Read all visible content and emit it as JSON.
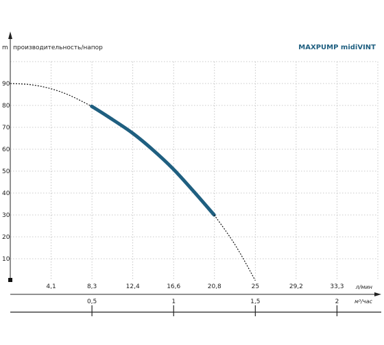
{
  "chart_data": {
    "type": "line",
    "brand_title": "MAXPUMP midiVINT",
    "ylabel": "производительность/напор",
    "y_unit": "m",
    "x_unit_lmin": "л/мин",
    "x_unit_m3h": "м³/час",
    "ylim": [
      0,
      100
    ],
    "xlim": [
      0,
      37.5
    ],
    "grid": true,
    "y_ticks": [
      10,
      20,
      30,
      40,
      50,
      60,
      70,
      80,
      90
    ],
    "x_ticks_lmin": [
      "4,1",
      "8,3",
      "12,4",
      "16,6",
      "20,8",
      "25",
      "29,2",
      "33,3"
    ],
    "x_ticks_m3h": [
      "0,5",
      "1",
      "1,5",
      "2"
    ],
    "series": [
      {
        "style": "dashed",
        "x": [
          0,
          2,
          4,
          6,
          8.3
        ],
        "y": [
          90,
          89.5,
          87.8,
          84.7,
          79.6
        ]
      },
      {
        "style": "solid",
        "color": "#1f5f80",
        "x": [
          8.3,
          10,
          12.4,
          14.5,
          16.6,
          18.7,
          20.8
        ],
        "y": [
          79.6,
          74.8,
          67.6,
          59.9,
          51.1,
          40.8,
          30
        ]
      },
      {
        "style": "dashed",
        "x": [
          20.8,
          22,
          23,
          24,
          25
        ],
        "y": [
          30,
          22.6,
          15.9,
          8.2,
          0
        ]
      }
    ]
  }
}
